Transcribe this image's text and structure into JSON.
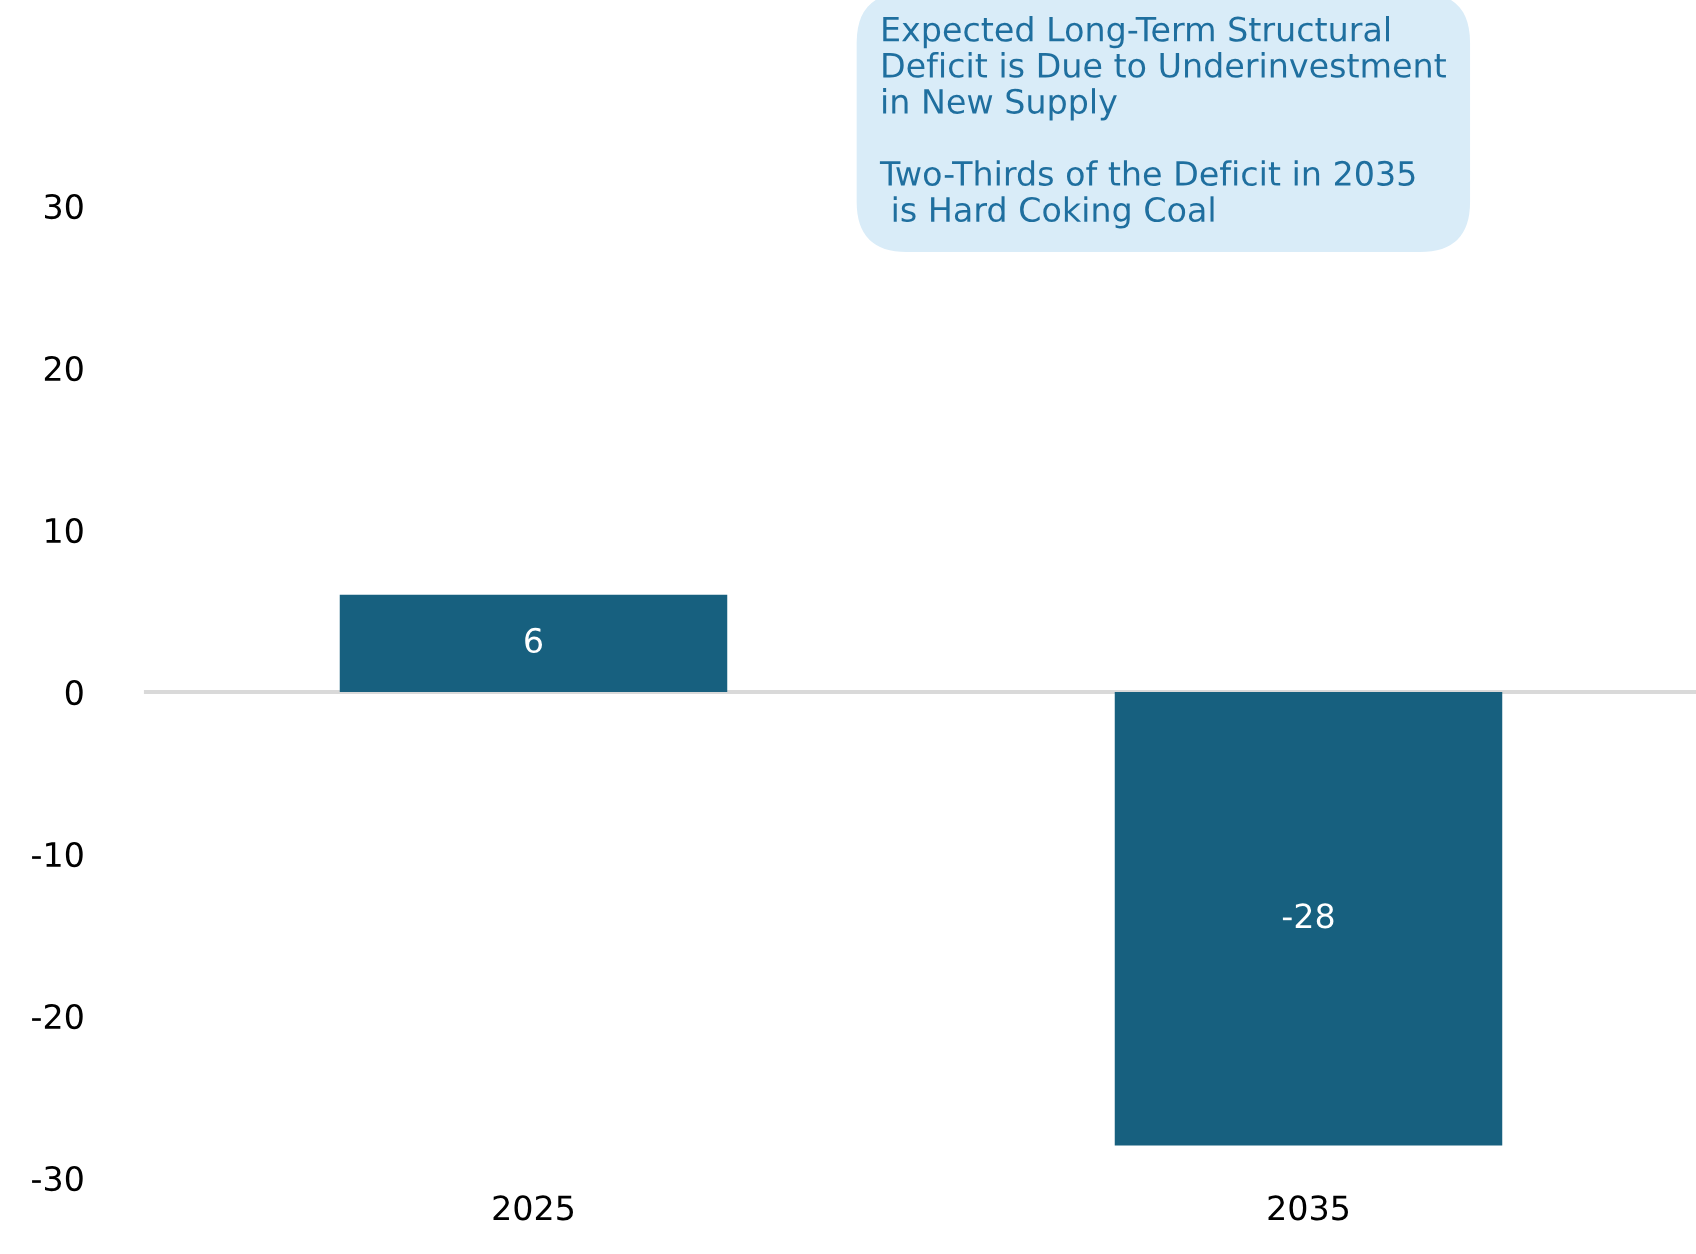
{
  "chart_data": {
    "type": "bar",
    "categories": [
      "2025",
      "2035"
    ],
    "series": [
      {
        "color": "#17607f",
        "values": [
          6,
          -28
        ]
      }
    ],
    "data_labels": true,
    "ylim": [
      -30,
      30
    ],
    "yticks": [
      -30,
      -20,
      -10,
      0,
      10,
      20,
      30
    ],
    "legend": false,
    "annotations": [
      "Expected Long-Term Structural\nDeficit is Due to Underinvestment\nin New Supply",
      "Two-Thirds of the Deficit in 2035\n is Hard Coking Coal"
    ]
  }
}
